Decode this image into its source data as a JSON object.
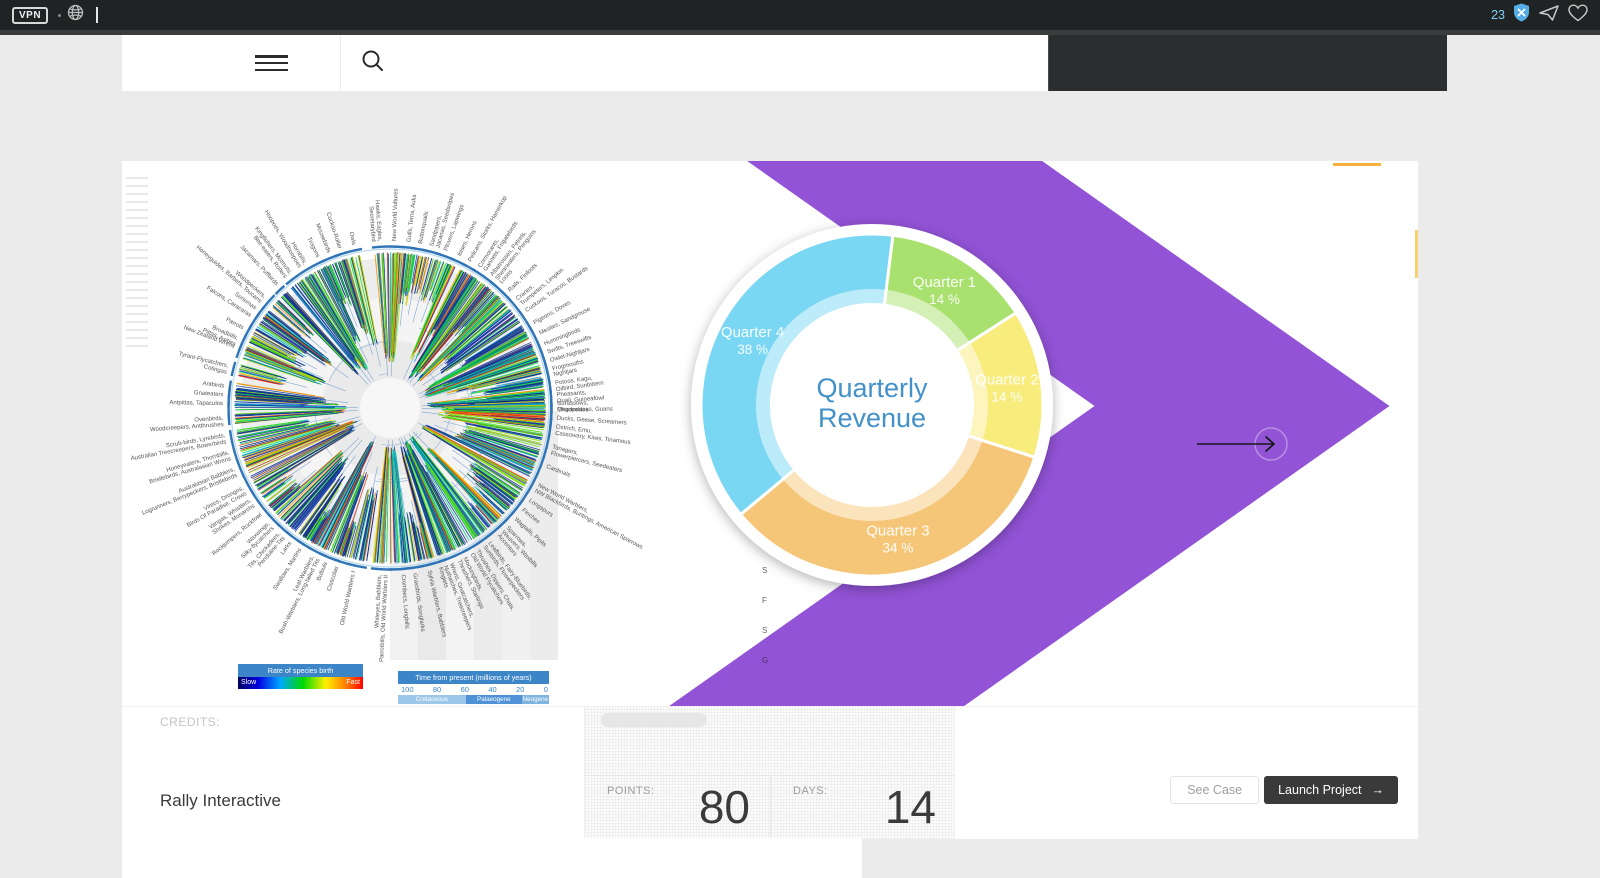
{
  "browser_bar": {
    "vpn_label": "VPN",
    "tab_count": "23",
    "icons": [
      "globe-icon",
      "shield-block-icon",
      "send-icon",
      "heart-icon"
    ],
    "accent_blue": "#7fd0f5"
  },
  "header": {
    "hamburger_icon": "menu",
    "search_icon": "search"
  },
  "chart_data": {
    "type": "pie",
    "title": "Quarterly Revenue",
    "title_lines": [
      "Quarterly",
      "Revenue"
    ],
    "categories": [
      "Quarter 1",
      "Quarter 2",
      "Quarter 3",
      "Quarter 4"
    ],
    "values": [
      14,
      14,
      34,
      38
    ],
    "unit": "%",
    "colors": [
      "#a9e16e",
      "#f8ec7d",
      "#f6c678",
      "#79d7f4"
    ],
    "start_angle_deg": 7,
    "direction": "clockwise",
    "donut": true,
    "title_color": "#4291c8",
    "label_radius": 136
  },
  "phylogeny": {
    "legend_rate": {
      "title": "Rate of species birth",
      "left": "Slow",
      "right": "Fast"
    },
    "legend_time": {
      "title": "Time from present (millions of years)",
      "ticks": [
        "100",
        "80",
        "60",
        "40",
        "20",
        "0"
      ],
      "periods": [
        "Cretaceous",
        "Palaeogene",
        "Neogene"
      ]
    },
    "ring_color": "#2f74b6",
    "labels": [
      {
        "angle": 356,
        "text": "Hawks, Eagles, Secretarybird"
      },
      {
        "angle": 2,
        "text": "New World Vultures"
      },
      {
        "angle": 7,
        "text": "Gulls, Terns, Auks"
      },
      {
        "angle": 11,
        "text": "Buttonquails"
      },
      {
        "angle": 15,
        "text": "Sandpipers, Jacanas, Seedsnipes"
      },
      {
        "angle": 20,
        "text": "Plovers, Lapwings"
      },
      {
        "angle": 25,
        "text": "Ibises, Herons"
      },
      {
        "angle": 29,
        "text": "Pelicans, Storks, Hamerkop"
      },
      {
        "angle": 33,
        "text": "Cormorants, Gannets, Frigatebirds"
      },
      {
        "angle": 38,
        "text": "Albatrosses, Petrels, Shearwaters, Penguins"
      },
      {
        "angle": 42,
        "text": "Loons"
      },
      {
        "angle": 46,
        "text": "Rails, Finfoots"
      },
      {
        "angle": 50,
        "text": "Cranes, Trumpeters, Limpkin"
      },
      {
        "angle": 55,
        "text": "Cuckoos, Turacos, Bustards"
      },
      {
        "angle": 60,
        "text": "Pigeons, Doves"
      },
      {
        "angle": 64,
        "text": "Mesites, Sandgrouse"
      },
      {
        "angle": 68,
        "text": "Hummingbirds"
      },
      {
        "angle": 71,
        "text": "Swifts, Treeswifts"
      },
      {
        "angle": 74,
        "text": "Owlet-Nightjars"
      },
      {
        "angle": 77,
        "text": "Frogmouths"
      },
      {
        "angle": 79,
        "text": "Nightjars"
      },
      {
        "angle": 82,
        "text": "Potoos, Kagu, Oilbird, Sunbittern"
      },
      {
        "angle": 86,
        "text": "Pheasants, Quail, Guineafowl"
      },
      {
        "angle": 89,
        "text": "Curassows, Chachalacas, Guans"
      },
      {
        "angle": 91,
        "text": "Megapodes"
      },
      {
        "angle": 94,
        "text": "Ducks, Geese, Screamers"
      },
      {
        "angle": 97,
        "text": "Ostrich, Emu, Cassowary, Kiwis, Tinamous"
      },
      {
        "angle": 104,
        "text": "Tanagers, Flowerpiercers, Seedeaters"
      },
      {
        "angle": 111,
        "text": "Cardinals"
      },
      {
        "angle": 118,
        "text": "New World Warblers, NW Blackbirds, Buntings, American Sparrows"
      },
      {
        "angle": 124,
        "text": "Longspurs"
      },
      {
        "angle": 128,
        "text": "Finches"
      },
      {
        "angle": 132,
        "text": "Wagtails, Pipits"
      },
      {
        "angle": 136,
        "text": "Sparrows, Weavers, Waxbills"
      },
      {
        "angle": 140,
        "text": "Accentors"
      },
      {
        "angle": 144,
        "text": "Leafbirds, Fairy-Bluebirds, Sunbirds, Flowerpeckers"
      },
      {
        "angle": 149,
        "text": "Thrushes, Dippers, Chats, Old World Flycatchers"
      },
      {
        "angle": 154,
        "text": "Mockingbirds, Thrashers, Starlings"
      },
      {
        "angle": 159,
        "text": "Wrens, Gnatcatchers, Nuthatches, Treecreepers"
      },
      {
        "angle": 163,
        "text": "Kinglets"
      },
      {
        "angle": 167,
        "text": "Sylvia Warblers, Babblers"
      },
      {
        "angle": 172,
        "text": "Grassbirds, Songlarks"
      },
      {
        "angle": 176,
        "text": "Crombecs, Longbills"
      },
      {
        "angle": 183,
        "text": "Whiteyes, Babblers, Parrotbills, Old World Warblers II"
      },
      {
        "angle": 192,
        "text": "Old World Warblers I"
      },
      {
        "angle": 198,
        "text": "Cisticolas"
      },
      {
        "angle": 202,
        "text": "Bulbuls"
      },
      {
        "angle": 207,
        "text": "Leaf-Warblers, Bush-Warblers, Long-tailed Tits"
      },
      {
        "angle": 212,
        "text": "Swallows, Martins"
      },
      {
        "angle": 216,
        "text": "Larks"
      },
      {
        "angle": 221,
        "text": "Tits, Chickadees, Penduline-Tits"
      },
      {
        "angle": 226,
        "text": "Waxwings, Silky-flycatchers"
      },
      {
        "angle": 230,
        "text": "Rockjumpers, Rockfowl"
      },
      {
        "angle": 236,
        "text": "Vangas, Whistlers, Shrikes, Monarchs"
      },
      {
        "angle": 241,
        "text": "Vireos, Drongos, Birds Of Paradise, Crows"
      },
      {
        "angle": 248,
        "text": "Australasian Babblers, Logrunners, Berrypeckers, Bristlebirds"
      },
      {
        "angle": 254,
        "text": "Honeyeaters, Thornbills, Bristlebirds, Australasian Wrens"
      },
      {
        "angle": 260,
        "text": "Scrub-birds, Lyrebirds, Australian Treecreepers, Bowerbirds"
      },
      {
        "angle": 266,
        "text": "Ovenbirds, Woodcreepers, Antthrushes"
      },
      {
        "angle": 271,
        "text": "Antpittas, Tapaculos"
      },
      {
        "angle": 274,
        "text": "Gnateaters"
      },
      {
        "angle": 277,
        "text": "Antbirds"
      },
      {
        "angle": 284,
        "text": "Tyrant-Flycatchers, Cotingas"
      },
      {
        "angle": 291,
        "text": "New Zealand Wrens"
      },
      {
        "angle": 294,
        "text": "Broadbills, Pittas, Asities"
      },
      {
        "angle": 298,
        "text": "Parrots"
      },
      {
        "angle": 303,
        "text": "Falcons, Caracaras"
      },
      {
        "angle": 306,
        "text": "Seriemas"
      },
      {
        "angle": 311,
        "text": "Woodpeckers, Honeyguides, Barbets, Toucans"
      },
      {
        "angle": 317,
        "text": "Jacamars, Puffbirds"
      },
      {
        "angle": 323,
        "text": "Kingfishers, Motmots, Bee-eaters, Rollers"
      },
      {
        "angle": 329,
        "text": "Hornbills, Hoopoes, Woodhoopoes"
      },
      {
        "angle": 334,
        "text": "Trogons"
      },
      {
        "angle": 338,
        "text": "Mousebirds"
      },
      {
        "angle": 342,
        "text": "Cuckoo-Roller"
      },
      {
        "angle": 347,
        "text": "Owls"
      }
    ]
  },
  "ribbon": {
    "color": "#9253d6",
    "letters": [
      "S",
      "F",
      "S",
      "G"
    ]
  },
  "credits": {
    "label": "CREDITS:",
    "value": "Rally Interactive"
  },
  "stats": {
    "points_label": "POINTS:",
    "points_value": "80",
    "days_label": "DAYS:",
    "days_value": "14"
  },
  "actions": {
    "see_case": "See Case",
    "launch_project": "Launch Project",
    "arrow": "→"
  }
}
